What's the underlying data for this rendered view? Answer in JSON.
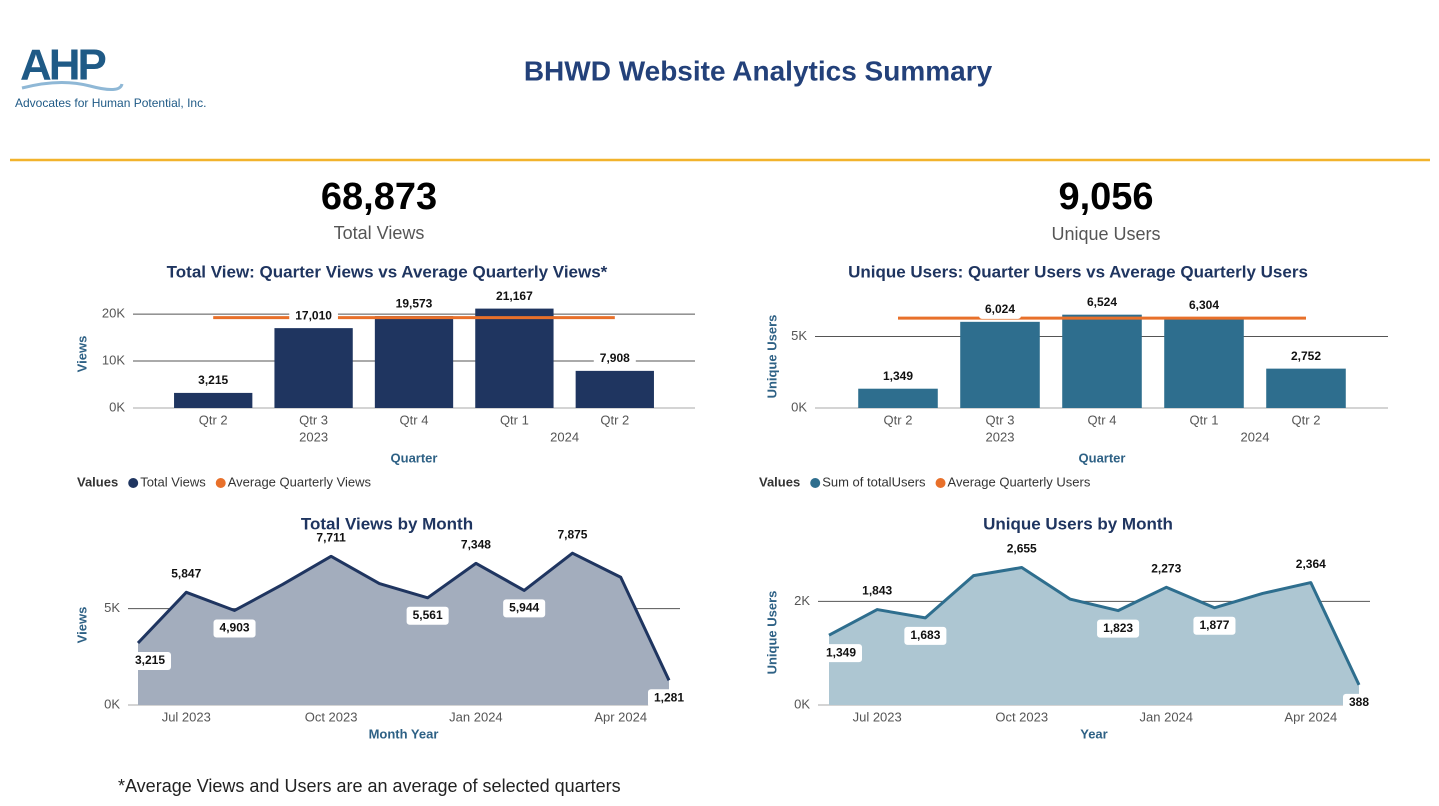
{
  "header": {
    "logo": "AHP",
    "org": "Advocates for Human Potential, Inc.",
    "title": "BHWD Website Analytics Summary"
  },
  "kpis": [
    {
      "value": "68,873",
      "label": "Total Views"
    },
    {
      "value": "9,056",
      "label": "Unique Users"
    }
  ],
  "footnote": "*Average Views and Users are an average of selected quarters",
  "chart_data": [
    {
      "type": "bar",
      "title": "Total View: Quarter Views vs Average Quarterly Views*",
      "categories": [
        "Qtr 2",
        "Qtr 3",
        "Qtr 4",
        "Qtr 1",
        "Qtr 2"
      ],
      "groups": [
        "2023",
        "2024"
      ],
      "x_label": "Quarter",
      "y_label": "Views",
      "ylim": [
        0,
        23000
      ],
      "yticks": [
        {
          "value": 0,
          "label": "0K"
        },
        {
          "value": 10000,
          "label": "10K"
        },
        {
          "value": 20000,
          "label": "20K"
        }
      ],
      "grid": true,
      "legend_title": "Values",
      "series": [
        {
          "name": "Total Views",
          "color": "#1f3560",
          "type": "bar",
          "values": [
            3215,
            17010,
            19573,
            21167,
            7908
          ],
          "value_labels": [
            "3,215",
            "17,010",
            "19,573",
            "21,167",
            "7,908"
          ]
        },
        {
          "name": "Average Quarterly Views",
          "color": "#e8702a",
          "type": "line",
          "values": [
            19250,
            19250,
            19250,
            19250,
            19250
          ]
        }
      ]
    },
    {
      "type": "bar",
      "title": "Unique Users: Quarter Users vs Average Quarterly Users",
      "categories": [
        "Qtr 2",
        "Qtr 3",
        "Qtr 4",
        "Qtr 1",
        "Qtr 2"
      ],
      "groups": [
        "2023",
        "2024"
      ],
      "x_label": "Quarter",
      "y_label": "Unique Users",
      "ylim": [
        0,
        7200
      ],
      "yticks": [
        {
          "value": 0,
          "label": "0K"
        },
        {
          "value": 5000,
          "label": "5K"
        }
      ],
      "grid": true,
      "legend_title": "Values",
      "series": [
        {
          "name": "Sum of totalUsers",
          "color": "#2e6e8e",
          "type": "bar",
          "values": [
            1349,
            6024,
            6524,
            6304,
            2752
          ],
          "value_labels": [
            "1,349",
            "6,024",
            "6,524",
            "6,304",
            "2,752"
          ]
        },
        {
          "name": "Average Quarterly Users",
          "color": "#e8702a",
          "type": "line",
          "values": [
            6284,
            6284,
            6284,
            6284,
            6284
          ]
        }
      ]
    },
    {
      "type": "area",
      "title": "Total Views by Month",
      "categories": [
        null,
        "Jul 2023",
        null,
        null,
        "Oct 2023",
        null,
        null,
        "Jan 2024",
        null,
        null,
        "Apr 2024",
        null
      ],
      "x_label": "Month Year",
      "y_label": "Views",
      "ylim": [
        0,
        8300
      ],
      "yticks": [
        {
          "value": 0,
          "label": "0K"
        },
        {
          "value": 5000,
          "label": "5K"
        }
      ],
      "grid": true,
      "series": [
        {
          "color": "#1f3560",
          "fill": "#a3adbd",
          "values": [
            3215,
            5847,
            4903,
            6260,
            7711,
            6301,
            5561,
            7348,
            5944,
            7875,
            6627,
            1281
          ],
          "value_labels": [
            "3,215",
            "5,847",
            "4,903",
            null,
            "7,711",
            null,
            "5,561",
            "7,348",
            "5,944",
            "7,875",
            null,
            "1,281"
          ]
        }
      ]
    },
    {
      "type": "area",
      "title": "Unique Users by Month",
      "categories": [
        null,
        "Jul 2023",
        null,
        null,
        "Oct 2023",
        null,
        null,
        "Jan 2024",
        null,
        null,
        "Apr 2024",
        null
      ],
      "x_label": "Year",
      "y_label": "Unique Users",
      "ylim": [
        0,
        2800
      ],
      "yticks": [
        {
          "value": 0,
          "label": "0K"
        },
        {
          "value": 2000,
          "label": "2K"
        }
      ],
      "grid": true,
      "series": [
        {
          "color": "#2e6e8e",
          "fill": "#adc6d2",
          "values": [
            1349,
            1843,
            1683,
            2498,
            2655,
            2046,
            1823,
            2273,
            1877,
            2154,
            2364,
            388
          ],
          "value_labels": [
            "1,349",
            "1,843",
            "1,683",
            null,
            "2,655",
            null,
            "1,823",
            "2,273",
            "1,877",
            null,
            "2,364",
            "388"
          ]
        }
      ]
    }
  ]
}
